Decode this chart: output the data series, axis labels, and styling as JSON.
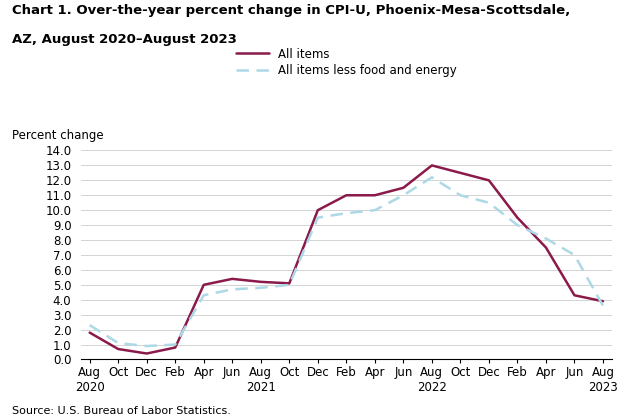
{
  "title_line1": "Chart 1. Over-the-year percent change in CPI-U, Phoenix-Mesa-Scottsdale,",
  "title_line2": "AZ, August 2020–August 2023",
  "ylabel": "Percent change",
  "source": "Source: U.S. Bureau of Labor Statistics.",
  "ylim": [
    0.0,
    14.0
  ],
  "yticks": [
    0.0,
    1.0,
    2.0,
    3.0,
    4.0,
    5.0,
    6.0,
    7.0,
    8.0,
    9.0,
    10.0,
    11.0,
    12.0,
    13.0,
    14.0
  ],
  "all_items_color": "#8B1A4A",
  "core_color": "#ADD8E6",
  "all_items_label": "All items",
  "core_label": "All items less food and energy",
  "x_tick_labels": [
    "Aug\n2020",
    "Oct",
    "Dec",
    "Feb",
    "Apr",
    "Jun",
    "Aug\n2021",
    "Oct",
    "Dec",
    "Feb",
    "Apr",
    "Jun",
    "Aug\n2022",
    "Oct",
    "Dec",
    "Feb",
    "Apr",
    "Jun",
    "Aug\n2023"
  ],
  "all_items": [
    1.8,
    0.7,
    0.4,
    0.8,
    5.0,
    5.4,
    5.2,
    5.1,
    10.0,
    11.0,
    11.0,
    11.5,
    13.0,
    12.5,
    12.0,
    9.5,
    7.5,
    4.3,
    3.9
  ],
  "core_items": [
    2.3,
    1.1,
    0.9,
    1.0,
    4.3,
    4.7,
    4.8,
    5.0,
    9.5,
    9.8,
    10.0,
    11.0,
    12.2,
    11.0,
    10.5,
    9.0,
    8.1,
    7.0,
    3.6
  ]
}
